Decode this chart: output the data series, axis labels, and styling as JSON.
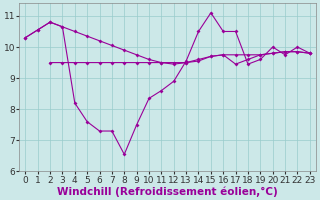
{
  "x": [
    0,
    1,
    2,
    3,
    4,
    5,
    6,
    7,
    8,
    9,
    10,
    11,
    12,
    13,
    14,
    15,
    16,
    17,
    18,
    19,
    20,
    21,
    22,
    23
  ],
  "series1": [
    10.3,
    10.55,
    10.8,
    10.65,
    10.5,
    10.35,
    10.2,
    10.05,
    9.9,
    9.75,
    9.6,
    9.5,
    9.45,
    9.5,
    9.6,
    9.7,
    9.75,
    9.75,
    9.75,
    9.75,
    9.8,
    9.85,
    9.85,
    9.8
  ],
  "series2": [
    10.3,
    10.55,
    10.8,
    10.65,
    8.2,
    7.6,
    7.3,
    7.3,
    6.55,
    7.5,
    8.35,
    8.6,
    8.9,
    9.55,
    10.5,
    11.1,
    10.5,
    10.5,
    9.45,
    9.6,
    10.0,
    9.75,
    10.0,
    9.8
  ],
  "series3": [
    null,
    null,
    9.5,
    9.5,
    9.5,
    9.5,
    9.5,
    9.5,
    9.5,
    9.5,
    9.5,
    9.5,
    9.5,
    9.5,
    9.55,
    9.7,
    9.75,
    9.45,
    9.6,
    9.75,
    9.8,
    9.85,
    9.85,
    9.8
  ],
  "background_color": "#cce8e8",
  "line_color": "#990099",
  "grid_color": "#99cccc",
  "xlabel": "Windchill (Refroidissement éolien,°C)",
  "xlabel_color": "#990099",
  "ylim": [
    6,
    11.4
  ],
  "yticks": [
    6,
    7,
    8,
    9,
    10,
    11
  ],
  "xticks": [
    0,
    1,
    2,
    3,
    4,
    5,
    6,
    7,
    8,
    9,
    10,
    11,
    12,
    13,
    14,
    15,
    16,
    17,
    18,
    19,
    20,
    21,
    22,
    23
  ],
  "tick_fontsize": 6.5,
  "xlabel_fontsize": 7.5
}
